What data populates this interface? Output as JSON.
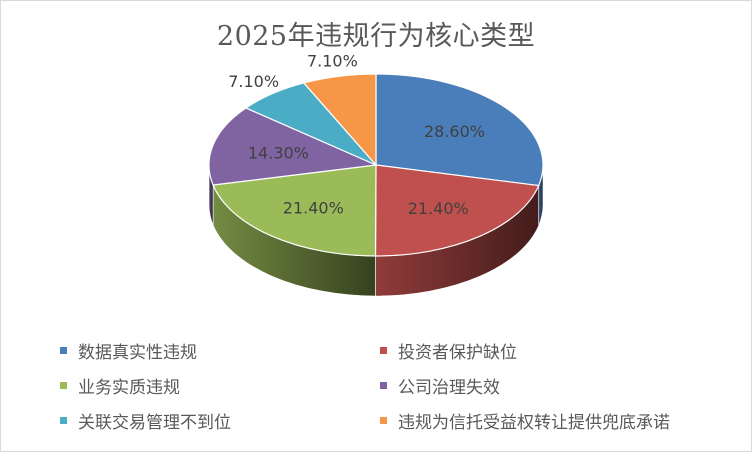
{
  "chart_data": {
    "type": "pie",
    "title": "2025年违规行为核心类型",
    "categories": [
      "数据真实性违规",
      "投资者保护缺位",
      "业务实质违规",
      "公司治理失效",
      "关联交易管理不到位",
      "违规为信托受益权转让提供兜底承诺"
    ],
    "values": [
      28.6,
      21.4,
      21.4,
      14.3,
      7.1,
      7.1
    ],
    "data_labels": [
      "28.60%",
      "21.40%",
      "21.40%",
      "14.30%",
      "7.10%",
      "7.10%"
    ],
    "colors": [
      "#4a7ebb",
      "#c0504d",
      "#9bbb59",
      "#8064a2",
      "#4bacc6",
      "#f79646"
    ],
    "legend_position": "bottom",
    "style": "3d"
  }
}
